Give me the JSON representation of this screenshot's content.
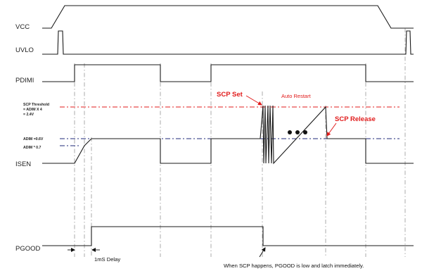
{
  "signals": {
    "vcc": "VCC",
    "uvlo": "UVLO",
    "pdimi": "PDIMI",
    "isen": "ISEN",
    "pgood": "PGOOD"
  },
  "scp_threshold": {
    "line1": "SCP Threshold",
    "line2": "= ADIM X 4",
    "line3": "= 2.4V"
  },
  "adim_labels": {
    "adim_06": "ADIM =0.6V",
    "adim_07": "ADIM * 0.7"
  },
  "annotations": {
    "scp_set": "SCP Set",
    "auto_restart": "Auto Restart",
    "scp_release": "SCP Release",
    "delay": "1mS Delay",
    "pgood_note": "When SCP happens, PGOOD is low and latch immediately."
  },
  "colors": {
    "threshold_line": "#e11b1b",
    "adim_line": "#1f2a7a",
    "signal": "#1a1a1a"
  }
}
